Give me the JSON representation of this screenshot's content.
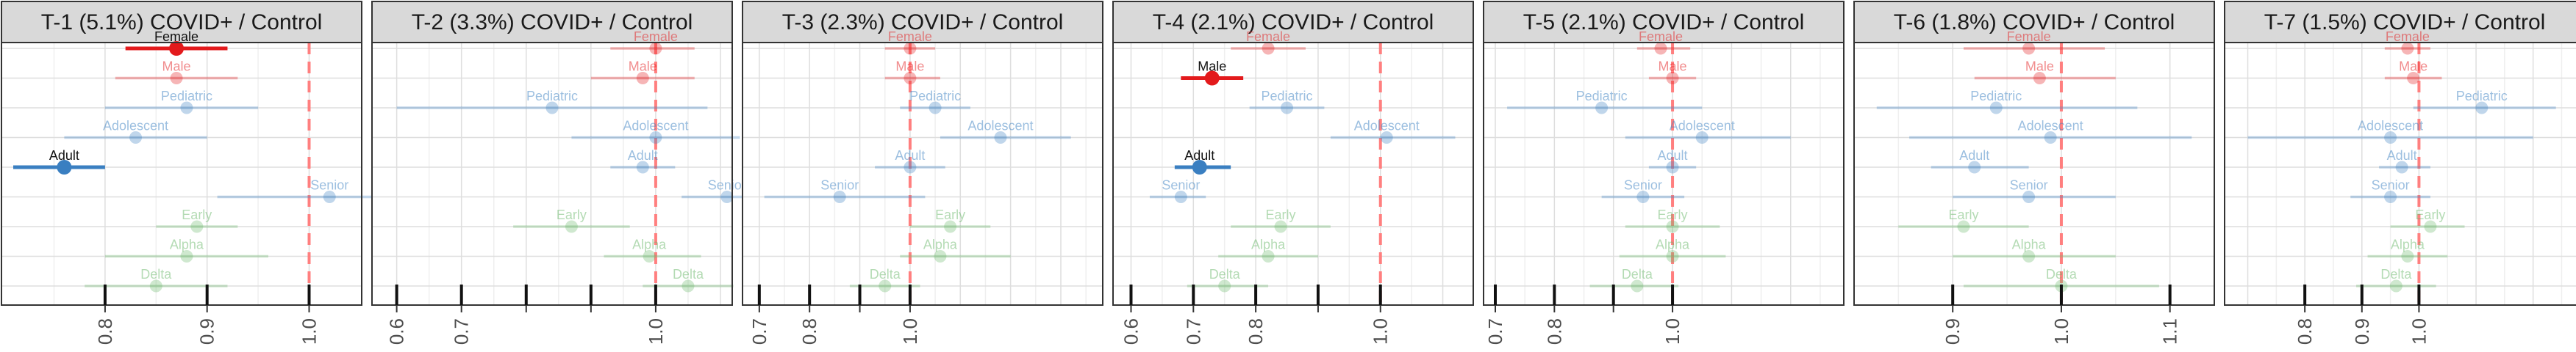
{
  "colors": {
    "sex": "#e31a1c",
    "age": "#3a7fc1",
    "variant": "#6ab86a",
    "reference": "#ff7f7f",
    "grid_major": "#dedede",
    "grid_minor": "#efefef",
    "strip_bg": "#d9d9d9"
  },
  "rows": [
    "Female",
    "Male",
    "Pediatric",
    "Adolescent",
    "Adult",
    "Senior",
    "Early",
    "Alpha",
    "Delta"
  ],
  "groups": {
    "Female": "sex",
    "Male": "sex",
    "Pediatric": "age",
    "Adolescent": "age",
    "Adult": "age",
    "Senior": "age",
    "Early": "variant",
    "Alpha": "variant",
    "Delta": "variant"
  },
  "chart_data": [
    {
      "type": "scatter",
      "title": "T-1 (5.1%) COVID+ / Control",
      "xlim": [
        0.71,
        1.04
      ],
      "ticks": [
        0.8,
        0.9,
        1.0
      ],
      "tick_labels": [
        "0.8",
        "0.9",
        "1.0"
      ],
      "reference": 1.0,
      "rows": [
        {
          "label": "Female",
          "est": 0.87,
          "lo": 0.82,
          "hi": 0.92,
          "highlight": true
        },
        {
          "label": "Male",
          "est": 0.87,
          "lo": 0.81,
          "hi": 0.93,
          "highlight": false
        },
        {
          "label": "Pediatric",
          "est": 0.88,
          "lo": 0.8,
          "hi": 0.95,
          "highlight": false
        },
        {
          "label": "Adolescent",
          "est": 0.83,
          "lo": 0.76,
          "hi": 0.9,
          "highlight": false
        },
        {
          "label": "Adult",
          "est": 0.76,
          "lo": 0.71,
          "hi": 0.8,
          "highlight": true
        },
        {
          "label": "Senior",
          "est": 1.02,
          "lo": 0.91,
          "hi": 1.13,
          "highlight": false
        },
        {
          "label": "Early",
          "est": 0.89,
          "lo": 0.85,
          "hi": 0.93,
          "highlight": false
        },
        {
          "label": "Alpha",
          "est": 0.88,
          "lo": 0.8,
          "hi": 0.96,
          "highlight": false
        },
        {
          "label": "Delta",
          "est": 0.85,
          "lo": 0.78,
          "hi": 0.92,
          "highlight": false
        }
      ]
    },
    {
      "type": "scatter",
      "title": "T-2 (3.3%) COVID+ / Control",
      "xlim": [
        0.58,
        1.1
      ],
      "ticks": [
        0.6,
        0.7,
        0.8,
        0.9,
        1.0
      ],
      "tick_labels": [
        "0.6",
        "0.7",
        "",
        "",
        "1.0"
      ],
      "reference": 1.0,
      "rows": [
        {
          "label": "Female",
          "est": 1.0,
          "lo": 0.93,
          "hi": 1.06,
          "highlight": false
        },
        {
          "label": "Male",
          "est": 0.98,
          "lo": 0.9,
          "hi": 1.06,
          "highlight": false
        },
        {
          "label": "Pediatric",
          "est": 0.84,
          "lo": 0.6,
          "hi": 1.08,
          "highlight": false
        },
        {
          "label": "Adolescent",
          "est": 1.0,
          "lo": 0.87,
          "hi": 1.13,
          "highlight": false
        },
        {
          "label": "Adult",
          "est": 0.98,
          "lo": 0.93,
          "hi": 1.03,
          "highlight": false
        },
        {
          "label": "Senior",
          "est": 1.11,
          "lo": 1.04,
          "hi": 1.18,
          "highlight": false
        },
        {
          "label": "Early",
          "est": 0.87,
          "lo": 0.78,
          "hi": 0.96,
          "highlight": false
        },
        {
          "label": "Alpha",
          "est": 0.99,
          "lo": 0.92,
          "hi": 1.07,
          "highlight": false
        },
        {
          "label": "Delta",
          "est": 1.05,
          "lo": 0.98,
          "hi": 1.12,
          "highlight": false
        }
      ]
    },
    {
      "type": "scatter",
      "title": "T-3 (2.3%) COVID+ / Control",
      "xlim": [
        0.69,
        1.36
      ],
      "ticks": [
        0.7,
        0.8,
        0.9,
        1.0
      ],
      "tick_labels": [
        "0.7",
        "0.8",
        "",
        "1.0"
      ],
      "reference": 1.0,
      "rows": [
        {
          "label": "Female",
          "est": 1.0,
          "lo": 0.95,
          "hi": 1.05,
          "highlight": false
        },
        {
          "label": "Male",
          "est": 1.0,
          "lo": 0.95,
          "hi": 1.06,
          "highlight": false
        },
        {
          "label": "Pediatric",
          "est": 1.05,
          "lo": 0.98,
          "hi": 1.12,
          "highlight": false
        },
        {
          "label": "Adolescent",
          "est": 1.18,
          "lo": 1.06,
          "hi": 1.32,
          "highlight": false
        },
        {
          "label": "Adult",
          "est": 1.0,
          "lo": 0.93,
          "hi": 1.07,
          "highlight": false
        },
        {
          "label": "Senior",
          "est": 0.86,
          "lo": 0.71,
          "hi": 1.03,
          "highlight": false
        },
        {
          "label": "Early",
          "est": 1.08,
          "lo": 1.0,
          "hi": 1.16,
          "highlight": false
        },
        {
          "label": "Alpha",
          "est": 1.06,
          "lo": 0.98,
          "hi": 1.2,
          "highlight": false
        },
        {
          "label": "Delta",
          "est": 0.95,
          "lo": 0.88,
          "hi": 1.02,
          "highlight": false
        }
      ]
    },
    {
      "type": "scatter",
      "title": "T-4 (2.1%) COVID+ / Control",
      "xlim": [
        0.59,
        1.13
      ],
      "ticks": [
        0.6,
        0.7,
        0.8,
        0.9,
        1.0
      ],
      "tick_labels": [
        "0.6",
        "0.7",
        "0.8",
        "",
        "1.0"
      ],
      "reference": 1.0,
      "rows": [
        {
          "label": "Female",
          "est": 0.82,
          "lo": 0.76,
          "hi": 0.88,
          "highlight": false
        },
        {
          "label": "Male",
          "est": 0.73,
          "lo": 0.68,
          "hi": 0.78,
          "highlight": true
        },
        {
          "label": "Pediatric",
          "est": 0.85,
          "lo": 0.79,
          "hi": 0.91,
          "highlight": false
        },
        {
          "label": "Adolescent",
          "est": 1.01,
          "lo": 0.92,
          "hi": 1.12,
          "highlight": false
        },
        {
          "label": "Adult",
          "est": 0.71,
          "lo": 0.67,
          "hi": 0.76,
          "highlight": true
        },
        {
          "label": "Senior",
          "est": 0.68,
          "lo": 0.63,
          "hi": 0.72,
          "highlight": false
        },
        {
          "label": "Early",
          "est": 0.84,
          "lo": 0.76,
          "hi": 0.92,
          "highlight": false
        },
        {
          "label": "Alpha",
          "est": 0.82,
          "lo": 0.74,
          "hi": 0.9,
          "highlight": false
        },
        {
          "label": "Delta",
          "est": 0.75,
          "lo": 0.69,
          "hi": 0.82,
          "highlight": false
        }
      ]
    },
    {
      "type": "scatter",
      "title": "T-5 (2.1%) COVID+ / Control",
      "xlim": [
        0.7,
        1.27
      ],
      "ticks": [
        0.7,
        0.8,
        0.9,
        1.0
      ],
      "tick_labels": [
        "0.7",
        "0.8",
        "",
        "1.0"
      ],
      "reference": 1.0,
      "rows": [
        {
          "label": "Female",
          "est": 0.98,
          "lo": 0.94,
          "hi": 1.03,
          "highlight": false
        },
        {
          "label": "Male",
          "est": 1.0,
          "lo": 0.96,
          "hi": 1.04,
          "highlight": false
        },
        {
          "label": "Pediatric",
          "est": 0.88,
          "lo": 0.72,
          "hi": 1.05,
          "highlight": false
        },
        {
          "label": "Adolescent",
          "est": 1.05,
          "lo": 0.92,
          "hi": 1.2,
          "highlight": false
        },
        {
          "label": "Adult",
          "est": 1.0,
          "lo": 0.96,
          "hi": 1.04,
          "highlight": false
        },
        {
          "label": "Senior",
          "est": 0.95,
          "lo": 0.88,
          "hi": 1.02,
          "highlight": false
        },
        {
          "label": "Early",
          "est": 1.0,
          "lo": 0.92,
          "hi": 1.08,
          "highlight": false
        },
        {
          "label": "Alpha",
          "est": 1.0,
          "lo": 0.91,
          "hi": 1.09,
          "highlight": false
        },
        {
          "label": "Delta",
          "est": 0.94,
          "lo": 0.86,
          "hi": 1.01,
          "highlight": false
        }
      ]
    },
    {
      "type": "scatter",
      "title": "T-6 (1.8%) COVID+ / Control",
      "xlim": [
        0.82,
        1.13
      ],
      "ticks": [
        0.9,
        1.0,
        1.1
      ],
      "tick_labels": [
        "0.9",
        "1.0",
        "1.1"
      ],
      "reference": 1.0,
      "rows": [
        {
          "label": "Female",
          "est": 0.97,
          "lo": 0.91,
          "hi": 1.04,
          "highlight": false
        },
        {
          "label": "Male",
          "est": 0.98,
          "lo": 0.92,
          "hi": 1.05,
          "highlight": false
        },
        {
          "label": "Pediatric",
          "est": 0.94,
          "lo": 0.83,
          "hi": 1.07,
          "highlight": false
        },
        {
          "label": "Adolescent",
          "est": 0.99,
          "lo": 0.86,
          "hi": 1.12,
          "highlight": false
        },
        {
          "label": "Adult",
          "est": 0.92,
          "lo": 0.88,
          "hi": 0.97,
          "highlight": false
        },
        {
          "label": "Senior",
          "est": 0.97,
          "lo": 0.9,
          "hi": 1.05,
          "highlight": false
        },
        {
          "label": "Early",
          "est": 0.91,
          "lo": 0.85,
          "hi": 0.97,
          "highlight": false
        },
        {
          "label": "Alpha",
          "est": 0.97,
          "lo": 0.9,
          "hi": 1.05,
          "highlight": false
        },
        {
          "label": "Delta",
          "est": 1.0,
          "lo": 0.91,
          "hi": 1.09,
          "highlight": false
        }
      ]
    },
    {
      "type": "scatter",
      "title": "T-7 (1.5%) COVID+ / Control",
      "xlim": [
        0.68,
        1.27
      ],
      "ticks": [
        0.8,
        0.9,
        1.0
      ],
      "tick_labels": [
        "0.8",
        "0.9",
        "1.0"
      ],
      "reference": 1.0,
      "rows": [
        {
          "label": "Female",
          "est": 0.98,
          "lo": 0.94,
          "hi": 1.02,
          "highlight": false
        },
        {
          "label": "Male",
          "est": 0.99,
          "lo": 0.94,
          "hi": 1.04,
          "highlight": false
        },
        {
          "label": "Pediatric",
          "est": 1.11,
          "lo": 0.99,
          "hi": 1.24,
          "highlight": false
        },
        {
          "label": "Adolescent",
          "est": 0.95,
          "lo": 0.7,
          "hi": 1.2,
          "highlight": false
        },
        {
          "label": "Adult",
          "est": 0.97,
          "lo": 0.93,
          "hi": 1.02,
          "highlight": false
        },
        {
          "label": "Senior",
          "est": 0.95,
          "lo": 0.88,
          "hi": 1.02,
          "highlight": false
        },
        {
          "label": "Early",
          "est": 1.02,
          "lo": 0.95,
          "hi": 1.08,
          "highlight": false
        },
        {
          "label": "Alpha",
          "est": 0.98,
          "lo": 0.91,
          "hi": 1.05,
          "highlight": false
        },
        {
          "label": "Delta",
          "est": 0.96,
          "lo": 0.89,
          "hi": 1.03,
          "highlight": false
        }
      ]
    }
  ]
}
